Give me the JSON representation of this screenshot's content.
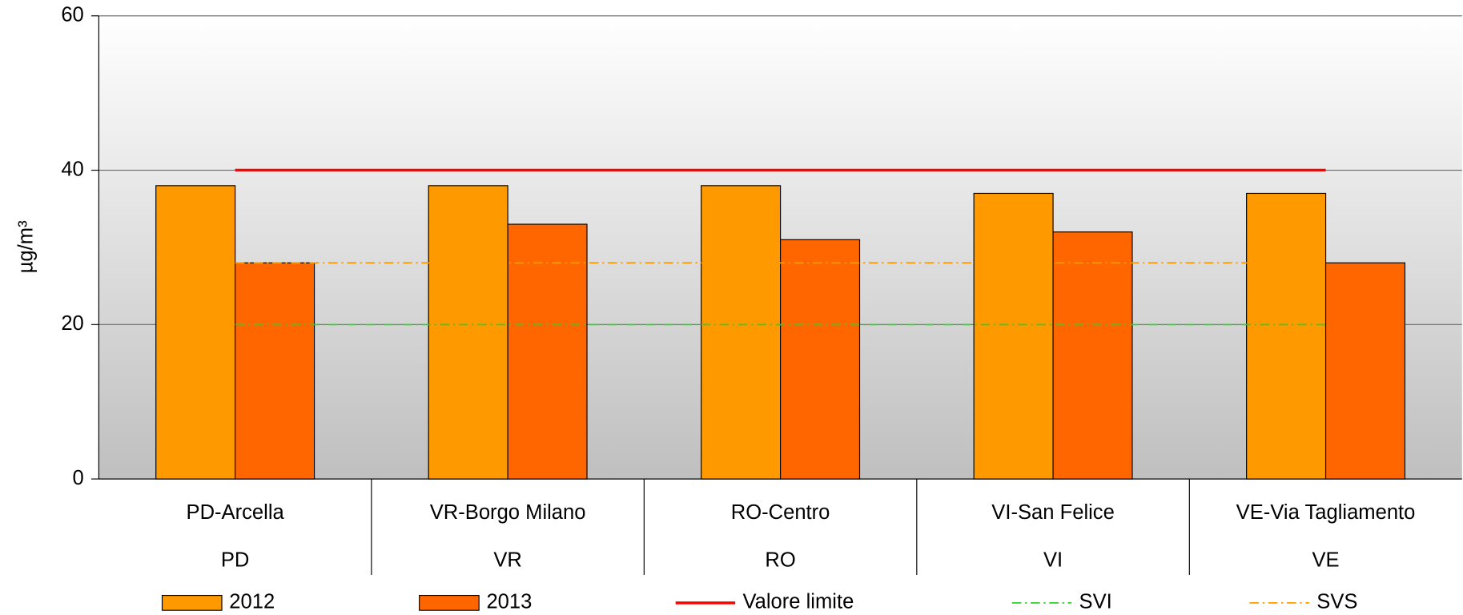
{
  "chart_data": {
    "type": "bar",
    "y_label": "µg/m³",
    "categories": [
      "PD-Arcella",
      "VR-Borgo Milano",
      "RO-Centro",
      "VI-San Felice",
      "VE-Via Tagliamento"
    ],
    "groups": [
      "PD",
      "VR",
      "RO",
      "VI",
      "VE"
    ],
    "series": [
      {
        "name": "2012",
        "type": "bar",
        "color": "#ff9900",
        "values": [
          38,
          38,
          38,
          37,
          37
        ]
      },
      {
        "name": "2013",
        "type": "bar",
        "color": "#ff6600",
        "values": [
          28,
          33,
          31,
          32,
          28
        ]
      },
      {
        "name": "Valore limite",
        "type": "line",
        "color": "#ff0000",
        "dash": "solid",
        "values": [
          40,
          40,
          40,
          40,
          40
        ]
      },
      {
        "name": "SVI",
        "type": "line",
        "color": "#33cc33",
        "dash": "dashdot",
        "values": [
          20,
          20,
          20,
          20,
          20
        ]
      },
      {
        "name": "SVS",
        "type": "line",
        "color": "#ff9900",
        "dash": "dashdot",
        "values": [
          28,
          28,
          28,
          28,
          28
        ]
      }
    ],
    "ylim": [
      0,
      60
    ],
    "yticks": [
      0,
      20,
      40,
      60
    ],
    "grid": true
  }
}
